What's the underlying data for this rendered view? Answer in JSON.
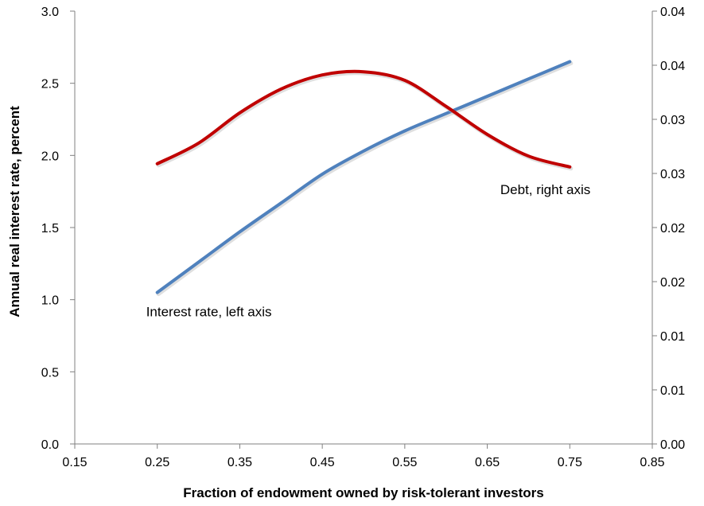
{
  "chart_data": {
    "type": "line",
    "xlabel": "Fraction of endowment owned by risk-tolerant investors",
    "ylabel": "Annual real interest rate, percent",
    "y2label": "",
    "x_ticks": [
      "0.15",
      "0.25",
      "0.35",
      "0.45",
      "0.55",
      "0.65",
      "0.75",
      "0.85"
    ],
    "y_ticks": [
      "0.0",
      "0.5",
      "1.0",
      "1.5",
      "2.0",
      "2.5",
      "3.0"
    ],
    "y2_ticks": [
      "0.00",
      "0.01",
      "0.01",
      "0.02",
      "0.02",
      "0.03",
      "0.03",
      "0.04",
      "0.04"
    ],
    "xlim": [
      0.15,
      0.85
    ],
    "ylim": [
      0,
      3.0
    ],
    "y2lim": [
      0,
      0.04
    ],
    "grid": false,
    "legend": "none",
    "series": [
      {
        "name": "Interest rate, left axis",
        "axis": "left",
        "color": "#4F81BD",
        "x": [
          0.25,
          0.3,
          0.35,
          0.4,
          0.45,
          0.5,
          0.55,
          0.6,
          0.65,
          0.7,
          0.75
        ],
        "y": [
          1.05,
          1.26,
          1.47,
          1.67,
          1.87,
          2.03,
          2.17,
          2.29,
          2.41,
          2.53,
          2.65
        ]
      },
      {
        "name": "Debt, right axis",
        "axis": "right",
        "color": "#C00000",
        "x": [
          0.25,
          0.3,
          0.35,
          0.4,
          0.45,
          0.5,
          0.55,
          0.6,
          0.65,
          0.7,
          0.75
        ],
        "y": [
          0.0259,
          0.0278,
          0.0306,
          0.0328,
          0.0341,
          0.0344,
          0.0336,
          0.0312,
          0.0286,
          0.0266,
          0.0256
        ]
      }
    ],
    "annotations": [
      {
        "text": "Interest rate, left axis"
      },
      {
        "text": "Debt, right axis"
      }
    ]
  }
}
